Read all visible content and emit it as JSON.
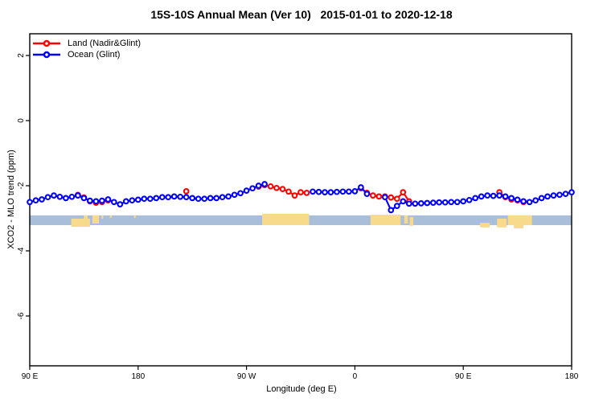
{
  "chart_data": {
    "type": "line",
    "title": "15S-10S Annual Mean (Ver 10)   2015-01-01 to 2020-12-18",
    "xlabel": "Longitude (deg E)",
    "ylabel": "XCO2 - MLO trend (ppm)",
    "xlim": [
      90,
      540
    ],
    "ylim": [
      -7.4,
      2.7
    ],
    "grid": false,
    "legend_position": "topleft",
    "x_start": 90,
    "x_step": 5,
    "x_ticks": [
      {
        "t": 90,
        "label": "90 E"
      },
      {
        "t": 180,
        "label": "180"
      },
      {
        "t": 270,
        "label": "90 W"
      },
      {
        "t": 360,
        "label": "0"
      },
      {
        "t": 450,
        "label": "90 E"
      },
      {
        "t": 540,
        "label": "180"
      }
    ],
    "y_ticks": [
      {
        "v": 2,
        "label": "2"
      },
      {
        "v": 0,
        "label": "0"
      },
      {
        "v": -2,
        "label": "-2"
      },
      {
        "v": -4,
        "label": "-4"
      },
      {
        "v": -6,
        "label": "-6"
      }
    ],
    "series": [
      {
        "name": "Land (Nadir&Glint)",
        "color": "#ff0000",
        "values": [
          null,
          null,
          null,
          null,
          null,
          null,
          null,
          null,
          -2.28,
          -2.36,
          -2.48,
          -2.52,
          -2.5,
          -2.45,
          null,
          null,
          null,
          null,
          null,
          null,
          null,
          null,
          null,
          null,
          null,
          null,
          -2.17,
          null,
          null,
          null,
          null,
          null,
          null,
          null,
          null,
          null,
          null,
          null,
          -2.03,
          -1.98,
          -2.02,
          -2.07,
          -2.1,
          -2.18,
          -2.3,
          -2.2,
          -2.22,
          null,
          null,
          null,
          null,
          null,
          null,
          null,
          null,
          -2.08,
          -2.22,
          -2.3,
          -2.33,
          -2.33,
          -2.36,
          -2.4,
          -2.2,
          -2.48,
          null,
          null,
          null,
          null,
          null,
          null,
          null,
          null,
          null,
          null,
          null,
          null,
          null,
          null,
          -2.2,
          -2.35,
          -2.42,
          -2.45,
          -2.5,
          null,
          null,
          null,
          null,
          null,
          null,
          null,
          null
        ]
      },
      {
        "name": "Ocean (Glint)",
        "color": "#0000ff",
        "values": [
          -2.5,
          -2.45,
          -2.42,
          -2.35,
          -2.3,
          -2.34,
          -2.38,
          -2.34,
          -2.3,
          -2.38,
          -2.46,
          -2.48,
          -2.46,
          -2.42,
          -2.5,
          -2.57,
          -2.48,
          -2.45,
          -2.43,
          -2.4,
          -2.4,
          -2.38,
          -2.35,
          -2.35,
          -2.33,
          -2.34,
          -2.35,
          -2.38,
          -2.4,
          -2.4,
          -2.38,
          -2.38,
          -2.35,
          -2.33,
          -2.28,
          -2.23,
          -2.15,
          -2.08,
          -2.0,
          -1.95,
          null,
          null,
          null,
          null,
          null,
          null,
          null,
          -2.18,
          -2.19,
          -2.2,
          -2.2,
          -2.19,
          -2.18,
          -2.18,
          -2.17,
          -2.05,
          -2.25,
          null,
          null,
          -2.35,
          -2.75,
          -2.62,
          -2.48,
          -2.55,
          -2.55,
          -2.54,
          -2.53,
          -2.52,
          -2.51,
          -2.51,
          -2.5,
          -2.5,
          -2.48,
          -2.44,
          -2.38,
          -2.33,
          -2.3,
          -2.31,
          -2.3,
          -2.33,
          -2.38,
          -2.43,
          -2.48,
          -2.5,
          -2.45,
          -2.38,
          -2.33,
          -2.3,
          -2.28,
          -2.25,
          -2.2
        ]
      }
    ],
    "surface_strip": {
      "description": "land/ocean map strip",
      "ocean_color": "#a9bed9",
      "land_color": "#f8da8c",
      "v_range": [
        -2.91,
        -3.21
      ],
      "land_patches": [
        {
          "t0": 124.5,
          "t1": 140,
          "v0": -3.01,
          "v1": -3.26
        },
        {
          "t0": 135,
          "t1": 138,
          "v0": -2.91,
          "v1": -3.14
        },
        {
          "t0": 142,
          "t1": 147.5,
          "v0": -2.91,
          "v1": -3.16
        },
        {
          "t0": 149.5,
          "t1": 151,
          "v0": -2.91,
          "v1": -3.01
        },
        {
          "t0": 156.5,
          "t1": 158,
          "v0": -2.91,
          "v1": -2.99
        },
        {
          "t0": 176.5,
          "t1": 178,
          "v0": -2.91,
          "v1": -2.99
        },
        {
          "t0": 283,
          "t1": 322,
          "v0": -2.86,
          "v1": -3.21
        },
        {
          "t0": 373,
          "t1": 398,
          "v0": -2.89,
          "v1": -3.21
        },
        {
          "t0": 401,
          "t1": 404,
          "v0": -2.91,
          "v1": -3.16
        },
        {
          "t0": 405.5,
          "t1": 408.5,
          "v0": -2.96,
          "v1": -3.23
        },
        {
          "t0": 464,
          "t1": 472,
          "v0": -3.14,
          "v1": -3.28
        },
        {
          "t0": 478,
          "t1": 486,
          "v0": -3.01,
          "v1": -3.28
        },
        {
          "t0": 487,
          "t1": 507,
          "v0": -2.91,
          "v1": -3.21
        },
        {
          "t0": 492,
          "t1": 500,
          "v0": -3.11,
          "v1": -3.31
        }
      ]
    }
  }
}
